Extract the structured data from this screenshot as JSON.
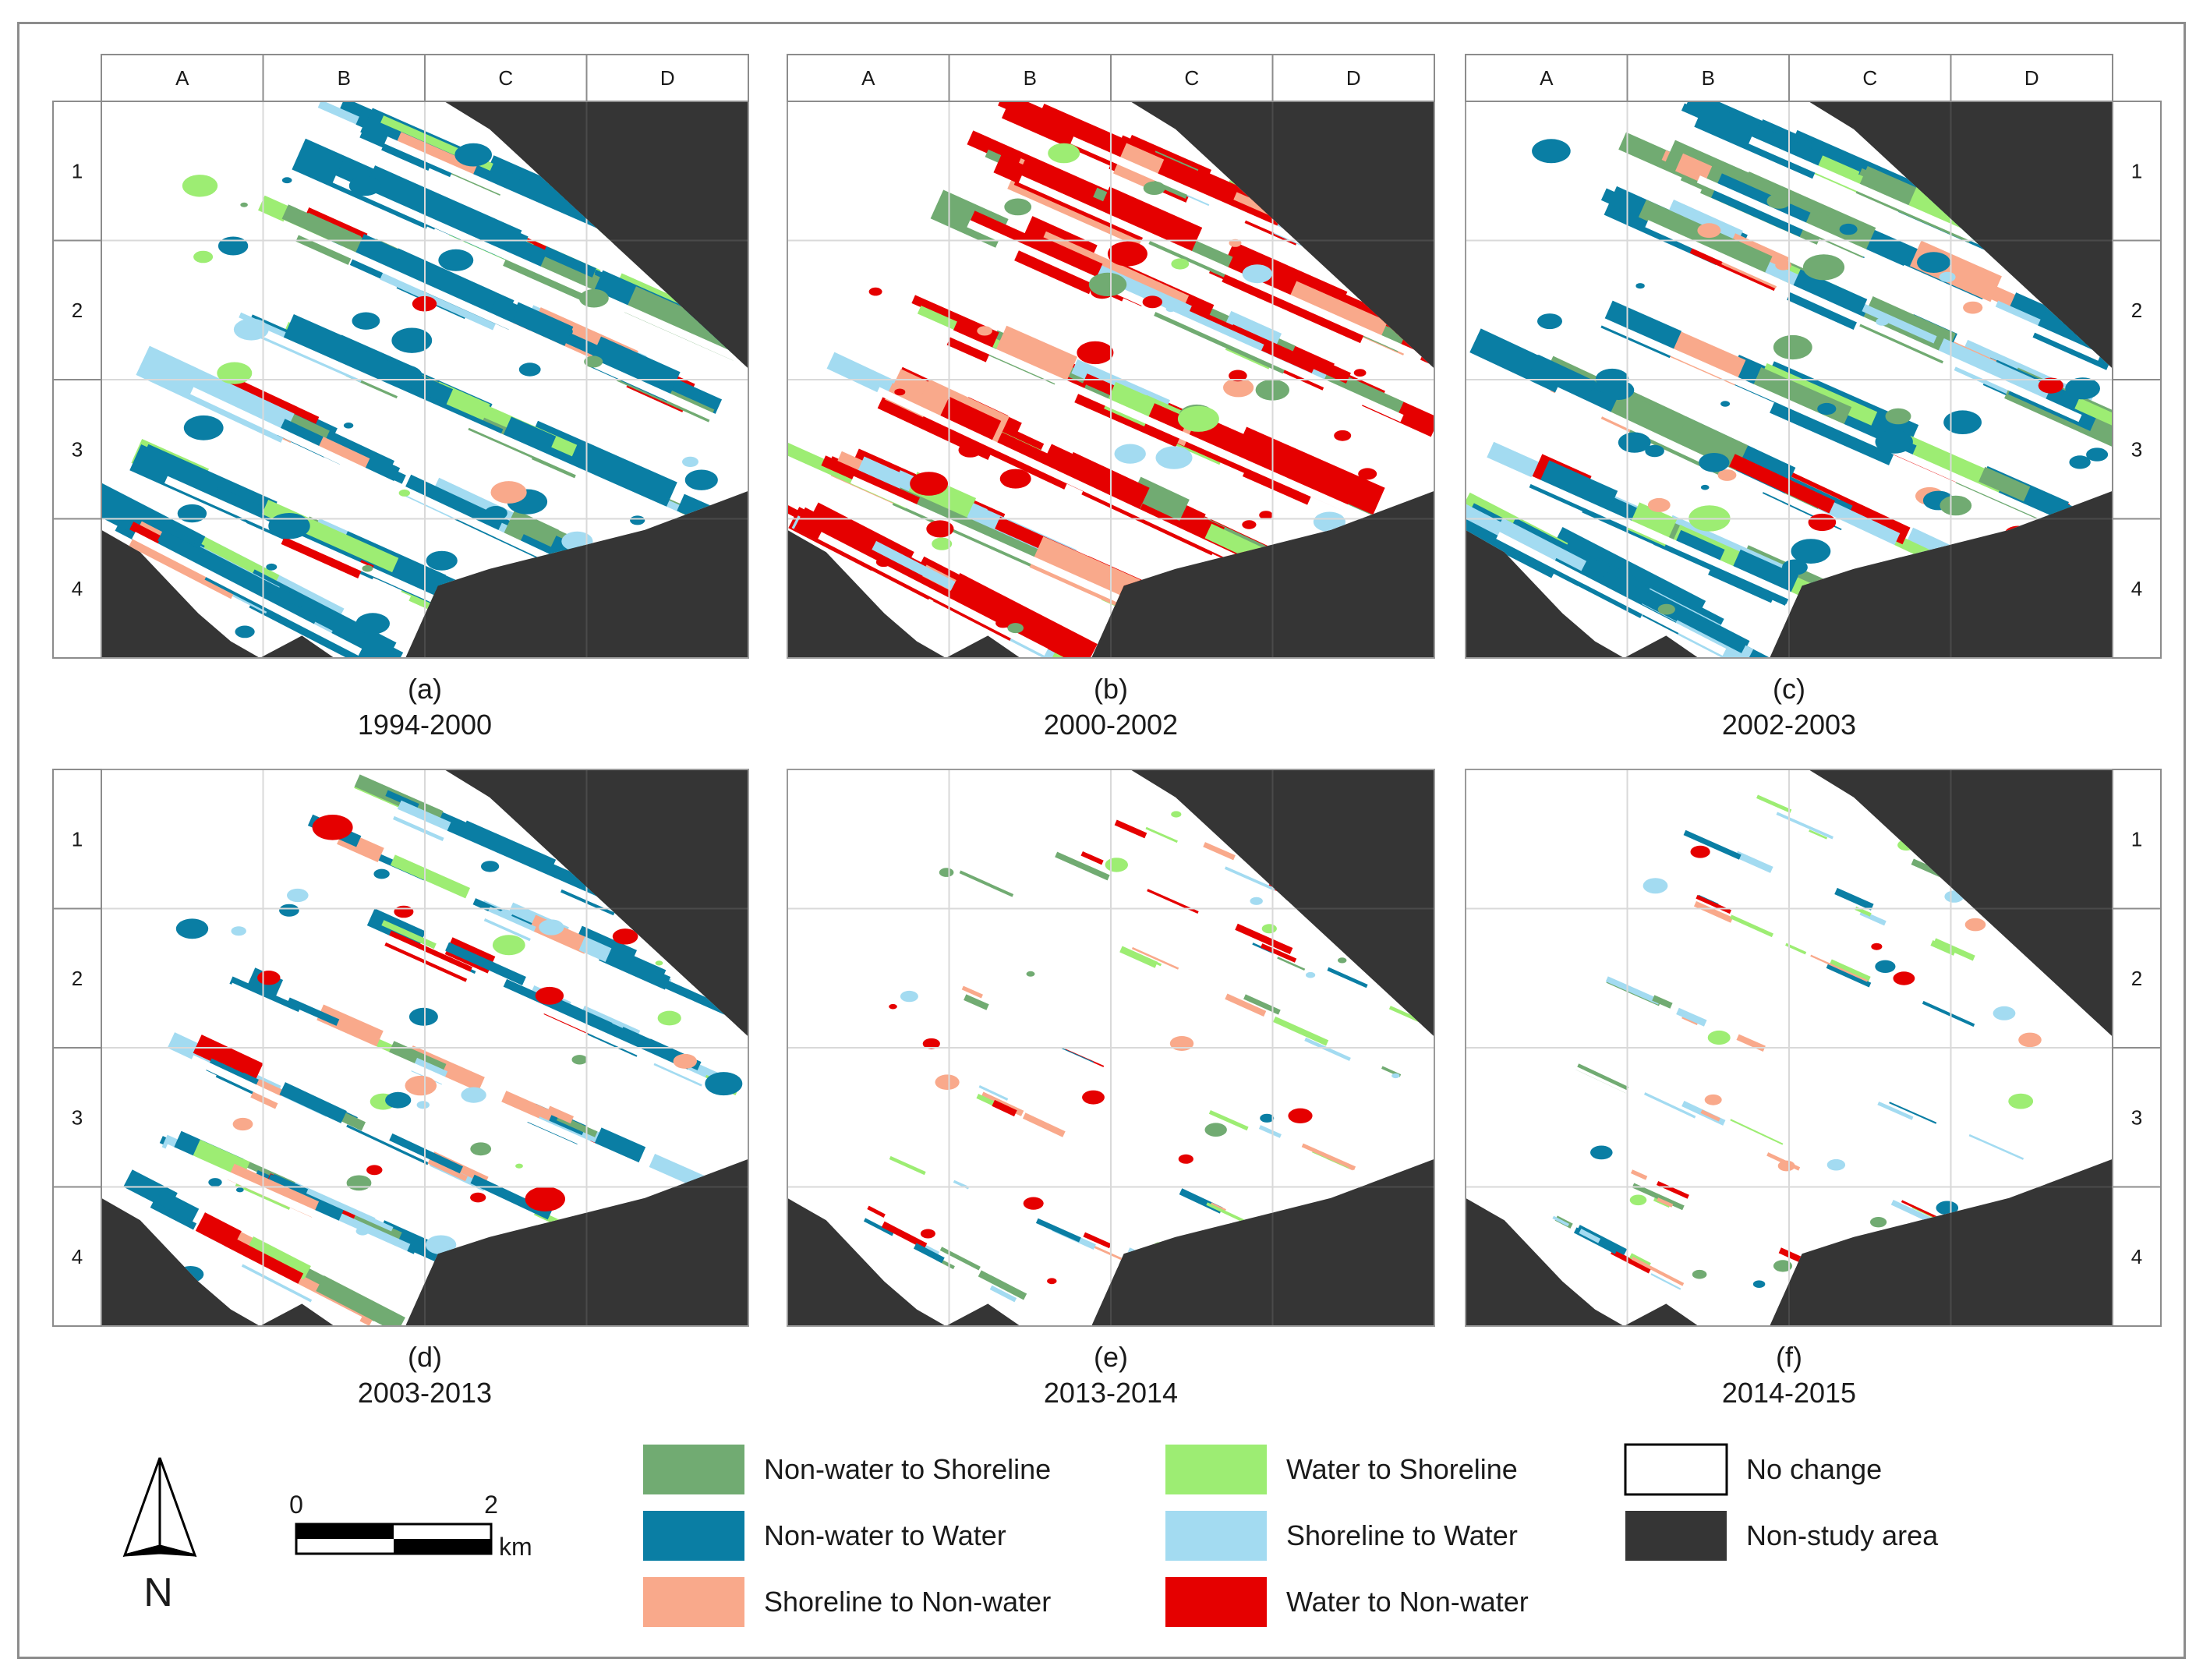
{
  "figure": {
    "panels": [
      {
        "label": "(a)",
        "years": "1994-2000",
        "dominant": "non_water_to_water",
        "column_labels": [
          "A",
          "B",
          "C",
          "D"
        ],
        "row_labels": [
          "1",
          "2",
          "3",
          "4"
        ],
        "row_label_side": "left"
      },
      {
        "label": "(b)",
        "years": "2000-2002",
        "dominant": "water_to_non_water",
        "column_labels": [
          "A",
          "B",
          "C",
          "D"
        ],
        "row_labels": [],
        "row_label_side": "none"
      },
      {
        "label": "(c)",
        "years": "2002-2003",
        "dominant": "non_water_to_water",
        "column_labels": [
          "A",
          "B",
          "C",
          "D"
        ],
        "row_labels": [
          "1",
          "2",
          "3",
          "4"
        ],
        "row_label_side": "right"
      },
      {
        "label": "(d)",
        "years": "2003-2013",
        "dominant": "mixed_blue",
        "column_labels": [],
        "row_labels": [
          "1",
          "2",
          "3",
          "4"
        ],
        "row_label_side": "left"
      },
      {
        "label": "(e)",
        "years": "2013-2014",
        "dominant": "sparse",
        "column_labels": [],
        "row_labels": [],
        "row_label_side": "none"
      },
      {
        "label": "(f)",
        "years": "2014-2015",
        "dominant": "sparse",
        "column_labels": [],
        "row_labels": [
          "1",
          "2",
          "3",
          "4"
        ],
        "row_label_side": "right"
      }
    ],
    "legend": [
      {
        "key": "non_water_to_shoreline",
        "label": "Non-water to Shoreline",
        "color": "#71ab72"
      },
      {
        "key": "non_water_to_water",
        "label": "Non-water to Water",
        "color": "#0a7ea4"
      },
      {
        "key": "shoreline_to_non_water",
        "label": "Shoreline to Non-water",
        "color": "#f9a98b"
      },
      {
        "key": "water_to_shoreline",
        "label": "Water to Shoreline",
        "color": "#9ded73"
      },
      {
        "key": "shoreline_to_water",
        "label": "Shoreline to Water",
        "color": "#a3dbf1"
      },
      {
        "key": "water_to_non_water",
        "label": "Water to Non-water",
        "color": "#e50000"
      },
      {
        "key": "no_change",
        "label": "No change",
        "color": "#ffffff"
      },
      {
        "key": "non_study_area",
        "label": "Non-study area",
        "color": "#353535"
      }
    ],
    "scale_bar": {
      "start": "0",
      "end": "2",
      "unit": "km"
    },
    "north_arrow": {
      "label": "N",
      "icon": "north-arrow-icon"
    },
    "colors": {
      "frame": "#8c8c8c",
      "grid_line": "#d9d9d9",
      "background": "#ffffff"
    }
  }
}
